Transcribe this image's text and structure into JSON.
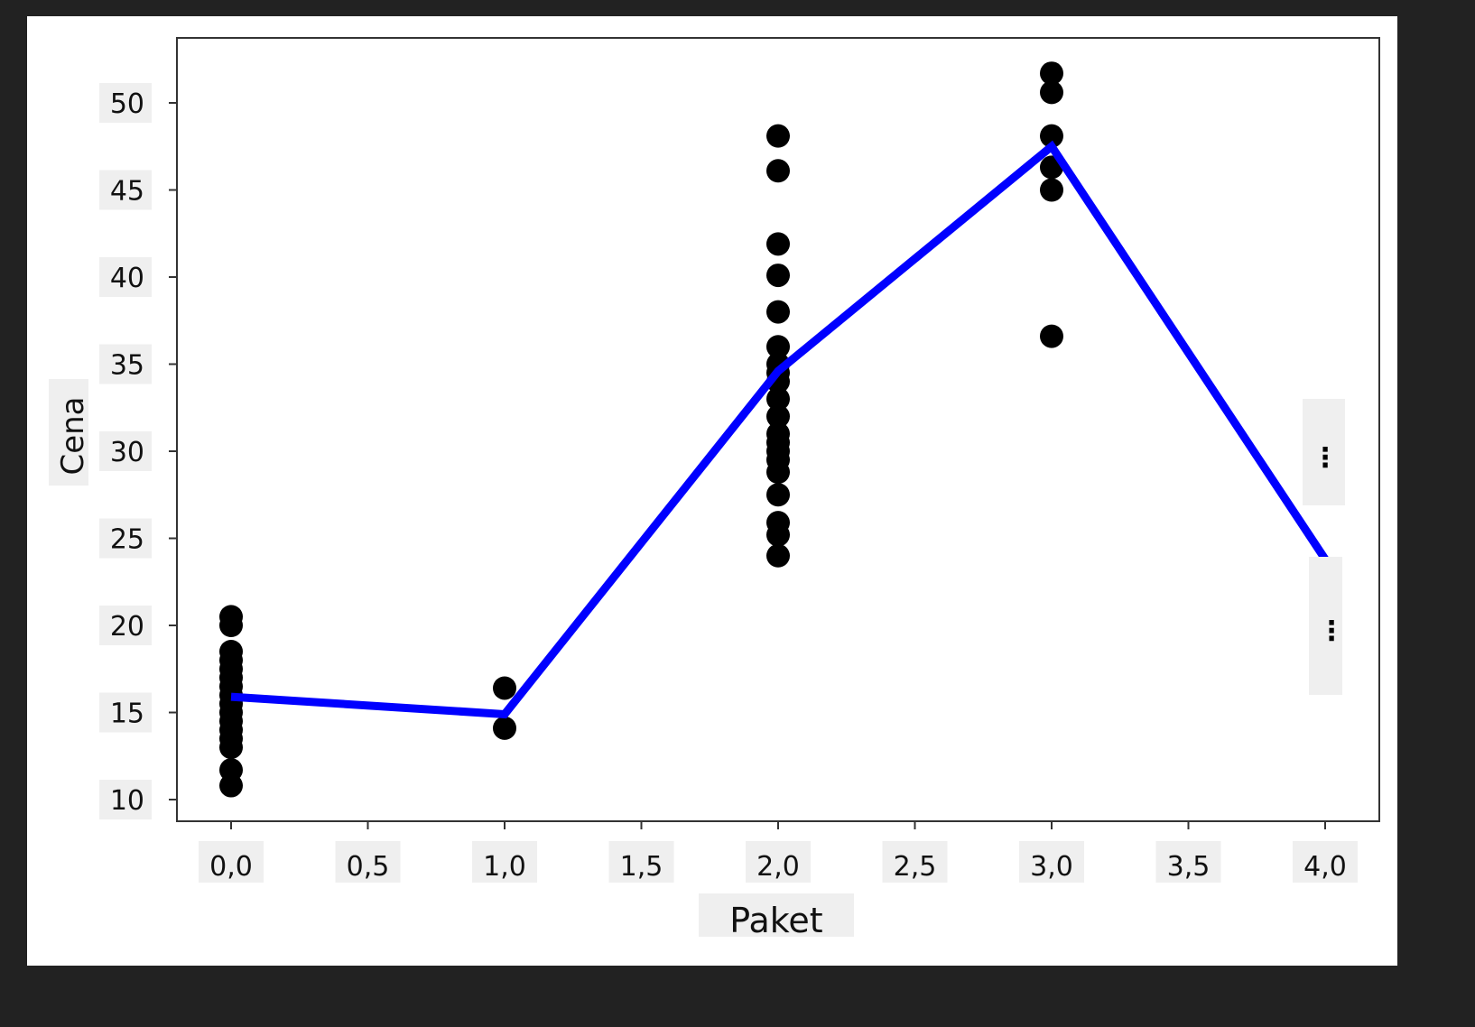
{
  "chart_data": {
    "type": "scatter",
    "title": "",
    "xlabel": "Paket",
    "ylabel": "Cena",
    "xlim": [
      -0.2,
      4.2
    ],
    "ylim": [
      9,
      53.5
    ],
    "grid": false,
    "x_ticks": [
      "0,0",
      "0,5",
      "1,0",
      "1,5",
      "2,0",
      "2,5",
      "3,0",
      "3,5",
      "4,0"
    ],
    "x_tick_values": [
      0,
      0.5,
      1,
      1.5,
      2,
      2.5,
      3,
      3.5,
      4
    ],
    "y_ticks": [
      "10",
      "15",
      "20",
      "25",
      "30",
      "35",
      "40",
      "45",
      "50"
    ],
    "y_tick_values": [
      10,
      15,
      20,
      25,
      30,
      35,
      40,
      45,
      50
    ],
    "series": [
      {
        "type": "scatter",
        "color": "#000000",
        "points": [
          [
            0,
            10.8
          ],
          [
            0,
            11.7
          ],
          [
            0,
            13.0
          ],
          [
            0,
            13.5
          ],
          [
            0,
            14.0
          ],
          [
            0,
            14.5
          ],
          [
            0,
            15.0
          ],
          [
            0,
            15.5
          ],
          [
            0,
            16.0
          ],
          [
            0,
            16.5
          ],
          [
            0,
            17.0
          ],
          [
            0,
            17.5
          ],
          [
            0,
            18.0
          ],
          [
            0,
            18.5
          ],
          [
            0,
            20.0
          ],
          [
            0,
            20.5
          ],
          [
            1,
            14.1
          ],
          [
            1,
            16.4
          ],
          [
            2,
            24.0
          ],
          [
            2,
            25.2
          ],
          [
            2,
            25.9
          ],
          [
            2,
            27.5
          ],
          [
            2,
            28.8
          ],
          [
            2,
            29.5
          ],
          [
            2,
            30.0
          ],
          [
            2,
            30.5
          ],
          [
            2,
            31.0
          ],
          [
            2,
            32.0
          ],
          [
            2,
            33.0
          ],
          [
            2,
            34.0
          ],
          [
            2,
            34.5
          ],
          [
            2,
            35.0
          ],
          [
            2,
            36.0
          ],
          [
            2,
            38.0
          ],
          [
            2,
            40.1
          ],
          [
            2,
            41.9
          ],
          [
            2,
            46.1
          ],
          [
            2,
            48.1
          ],
          [
            3,
            36.6
          ],
          [
            3,
            45.0
          ],
          [
            3,
            46.3
          ],
          [
            3,
            48.1
          ],
          [
            3,
            50.6
          ],
          [
            3,
            51.7
          ]
        ]
      },
      {
        "type": "line",
        "color": "#0000ff",
        "x": [
          0,
          1,
          2,
          3,
          4
        ],
        "y": [
          15.9,
          14.9,
          34.6,
          47.5,
          23.8
        ]
      }
    ],
    "annotations": [
      "⋮",
      "⋮"
    ]
  }
}
